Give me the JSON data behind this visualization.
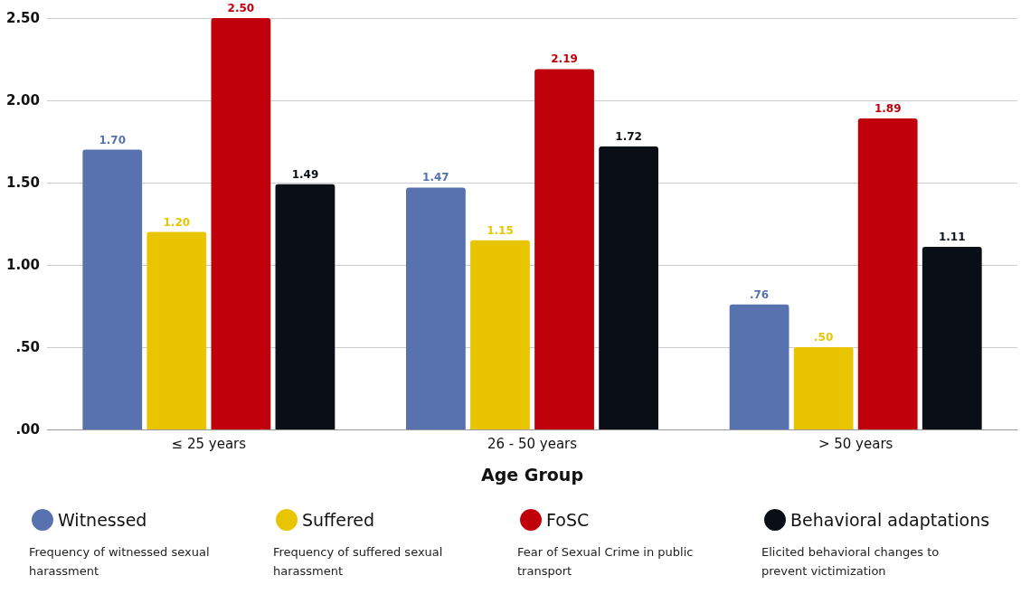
{
  "chart_data": {
    "type": "bar",
    "xlabel": "Age Group",
    "categories": [
      "≤ 25 years",
      "26 - 50 years",
      "> 50 years"
    ],
    "series": [
      {
        "name": "Witnessed",
        "color": "#5872b0",
        "values": [
          1.7,
          1.47,
          0.76
        ],
        "value_labels": [
          "1.70",
          "1.47",
          ".76"
        ]
      },
      {
        "name": "Suffered",
        "color": "#e8c500",
        "values": [
          1.2,
          1.15,
          0.5
        ],
        "value_labels": [
          "1.20",
          "1.15",
          ".50"
        ]
      },
      {
        "name": "FoSC",
        "color": "#c0000b",
        "values": [
          2.5,
          2.19,
          1.89
        ],
        "value_labels": [
          "2.50",
          "2.19",
          "1.89"
        ]
      },
      {
        "name": "Behavioral adaptations",
        "color": "#0a0f17",
        "values": [
          1.49,
          1.72,
          1.11
        ],
        "value_labels": [
          "1.49",
          "1.72",
          "1.11"
        ]
      }
    ],
    "ylim": [
      0,
      2.5
    ],
    "yticks": [
      {
        "value": 0,
        "label": ".00"
      },
      {
        "value": 0.5,
        "label": ".50"
      },
      {
        "value": 1,
        "label": "1.00"
      },
      {
        "value": 1.5,
        "label": "1.50"
      },
      {
        "value": 2,
        "label": "2.00"
      },
      {
        "value": 2.5,
        "label": "2.50"
      }
    ],
    "grid": "y",
    "legend": "bottom",
    "annotations": [
      "Frequency of witnessed sexual harassment",
      "Frequency of suffered sexual harassment",
      "Fear of Sexual Crime in public transport",
      "Elicited behavioral changes to prevent victimization"
    ]
  }
}
